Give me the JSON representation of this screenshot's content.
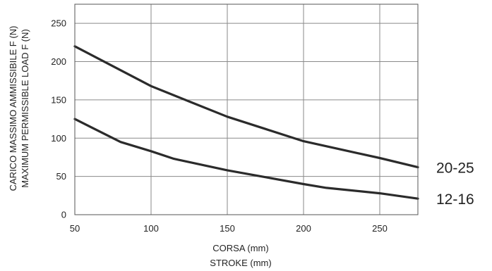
{
  "chart_data": {
    "type": "line",
    "ylabel": [
      "CARICO MASSIMO AMMISSIBILE F (N)",
      "MAXIMUM PERMISSIBLE LOAD F (N)"
    ],
    "xlabel": [
      "CORSA (mm)",
      "STROKE (mm)"
    ],
    "xlim": [
      50,
      275
    ],
    "ylim": [
      0,
      275
    ],
    "x_ticks": [
      50,
      100,
      150,
      200,
      250
    ],
    "y_ticks": [
      0,
      50,
      100,
      150,
      200,
      250
    ],
    "grid": true,
    "series": [
      {
        "name": "20-25",
        "x": [
          50,
          75,
          100,
          125,
          150,
          175,
          200,
          225,
          250,
          275
        ],
        "values": [
          220,
          194,
          168,
          148,
          128,
          112,
          96,
          85,
          74,
          62
        ]
      },
      {
        "name": "12-16",
        "x": [
          50,
          80,
          100,
          115,
          150,
          175,
          200,
          215,
          250,
          275
        ],
        "values": [
          125,
          95,
          83,
          73,
          58,
          49,
          40,
          35,
          28,
          21
        ]
      }
    ]
  }
}
